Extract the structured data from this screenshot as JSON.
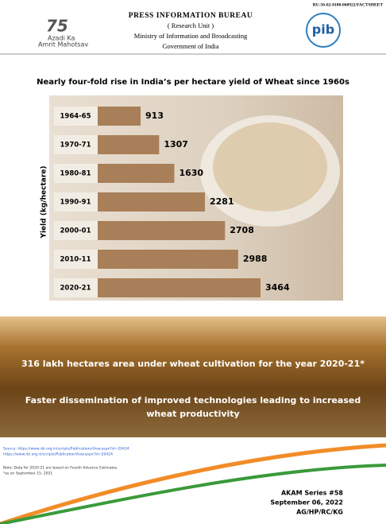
{
  "header": {
    "code": "RU-56-02-0180-060922/FACTSHEET",
    "bureau": "PRESS INFORMATION BUREAU",
    "unit": "( Research Unit )",
    "ministry": "Ministry of Information and Broadcasting",
    "government": "Government of India",
    "logo_number": "75",
    "logo_line1": "Azadi Ka",
    "logo_line2": "Amrit Mahotsav",
    "pib": "pib"
  },
  "chart_data": {
    "type": "bar",
    "orientation": "horizontal",
    "title": "Nearly four-fold rise in India’s per hectare yield of Wheat since 1960s",
    "y_label": "Yield (kg/hectare)",
    "categories": [
      "1964-65",
      "1970-71",
      "1980-81",
      "1990-91",
      "2000-01",
      "2010-11",
      "2020-21"
    ],
    "values": [
      913,
      1307,
      1630,
      2281,
      2708,
      2988,
      3464
    ],
    "color": "#a87f58"
  },
  "banner": {
    "line1": "316 lakh hectares area under wheat cultivation for the year 2020-21*",
    "line2": [
      "Faster dissemination of improved technologies leading to increased",
      "wheat productivity"
    ]
  },
  "footer": {
    "sources": [
      "Source: https://www.rbi.org.in/scripts/PublicationsView.aspx?id=20424",
      "https://www.rbi.org.in/scripts/PublicationView.aspx?id=20424"
    ],
    "notes": [
      "Note: Data for 2020-21 are based on Fourth Advance Estimates",
      "*as on September 15, 2021"
    ],
    "series": "AKAM Series #58",
    "date": "September 06, 2022",
    "codes": "AG/HP/RC/KG"
  }
}
